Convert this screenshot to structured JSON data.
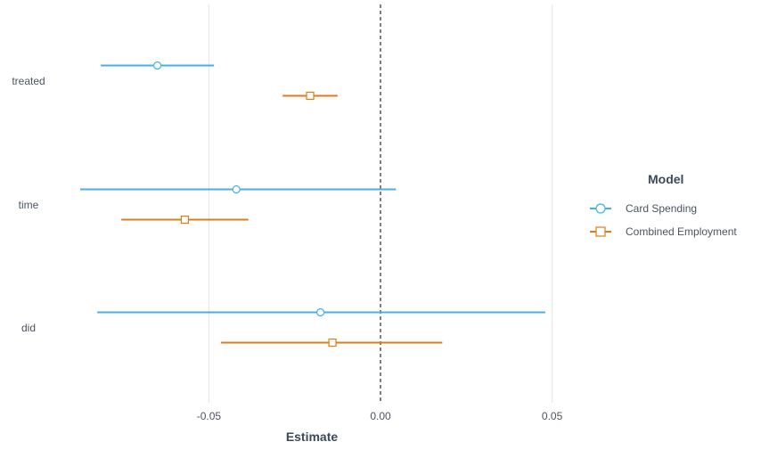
{
  "chart_data": {
    "type": "coefficient_plot",
    "orientation": "horizontal",
    "xlabel": "Estimate",
    "ylabel": "",
    "xlim": [
      -0.1,
      0.05
    ],
    "x_ticks": [
      -0.05,
      0.0,
      0.05
    ],
    "x_tick_labels": [
      "-0.05",
      "0.00",
      "0.05"
    ],
    "reference_line": 0,
    "grid": "vertical-major",
    "categories": [
      "treated",
      "time",
      "did"
    ],
    "legend": {
      "title": "Model",
      "position": "right"
    },
    "series": [
      {
        "name": "Card Spending",
        "color": "#45b0e8",
        "marker": "circle",
        "points": [
          {
            "term": "treated",
            "estimate": -0.065,
            "low": -0.0815,
            "high": -0.0485
          },
          {
            "term": "time",
            "estimate": -0.042,
            "low": -0.0875,
            "high": 0.0045
          },
          {
            "term": "did",
            "estimate": -0.0175,
            "low": -0.0825,
            "high": 0.048
          }
        ]
      },
      {
        "name": "Combined Employment",
        "color": "#e07b1a",
        "marker": "square",
        "points": [
          {
            "term": "treated",
            "estimate": -0.0205,
            "low": -0.0285,
            "high": -0.0125
          },
          {
            "term": "time",
            "estimate": -0.057,
            "low": -0.0755,
            "high": -0.0385
          },
          {
            "term": "did",
            "estimate": -0.014,
            "low": -0.0465,
            "high": 0.018
          }
        ]
      }
    ]
  }
}
